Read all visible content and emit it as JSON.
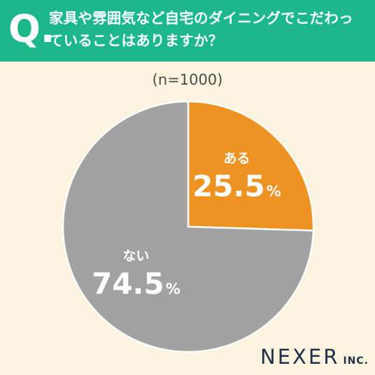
{
  "header": {
    "q_mark": "Q.",
    "title": "家具や雰囲気など自宅のダイニングでこだわっていることはありますか？",
    "background": "#1cb88c"
  },
  "logo": {
    "main": "NEXER",
    "sub": "INC."
  },
  "chart_data": {
    "type": "pie",
    "subtitle": "(n=1000)",
    "slices": [
      {
        "label": "ある",
        "value": 25.5,
        "display": "25.5",
        "unit": "%",
        "color": "#ee9322"
      },
      {
        "label": "ない",
        "value": 74.5,
        "display": "74.5",
        "unit": "%",
        "color": "#a2a2a2"
      }
    ],
    "start_angle": "12 o'clock",
    "direction": "clockwise",
    "legend": "none",
    "label_position": "inside"
  }
}
